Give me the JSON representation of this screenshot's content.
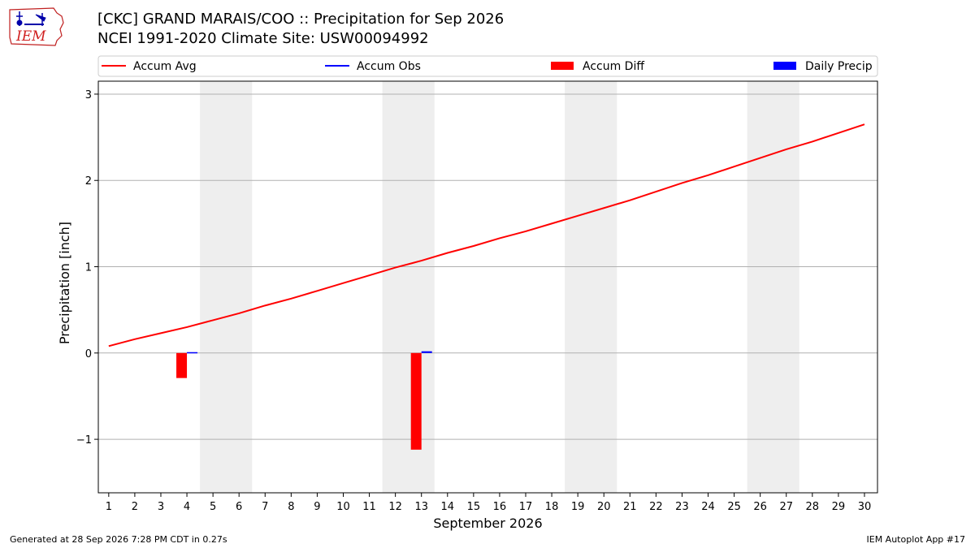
{
  "logo": {
    "text": "IEM",
    "icon": "iem-iowa-logo"
  },
  "header": {
    "title_line1": "[CKC] GRAND MARAIS/COO :: Precipitation for Sep 2026",
    "title_line2": "NCEI 1991-2020 Climate Site: USW00094992"
  },
  "footer": {
    "generated": "Generated at 28 Sep 2026 7:28 PM CDT in 0.27s",
    "app": "IEM Autoplot App #17"
  },
  "colors": {
    "accum_avg": "#ff0000",
    "accum_obs": "#0000ff",
    "accum_diff": "#ff0000",
    "daily_precip": "#0000ff",
    "weekend_shade": "#eeeeee",
    "grid": "#b0b0b0"
  },
  "chart_data": {
    "type": "line",
    "xlabel": "September 2026",
    "ylabel": "Precipitation [inch]",
    "xlim": [
      0.6,
      30.5
    ],
    "ylim": [
      -1.62,
      3.15
    ],
    "yticks": [
      -1,
      0,
      1,
      2,
      3
    ],
    "ytick_labels": [
      "−1",
      "0",
      "1",
      "2",
      "3"
    ],
    "x": [
      1,
      2,
      3,
      4,
      5,
      6,
      7,
      8,
      9,
      10,
      11,
      12,
      13,
      14,
      15,
      16,
      17,
      18,
      19,
      20,
      21,
      22,
      23,
      24,
      25,
      26,
      27,
      28,
      29,
      30
    ],
    "xtick_labels": [
      "1",
      "2",
      "3",
      "4",
      "5",
      "6",
      "7",
      "8",
      "9",
      "10",
      "11",
      "12",
      "13",
      "14",
      "15",
      "16",
      "17",
      "18",
      "19",
      "20",
      "21",
      "22",
      "23",
      "24",
      "25",
      "26",
      "27",
      "28",
      "29",
      "30"
    ],
    "grid": "horizontal",
    "legend": "top",
    "weekend_spans": [
      [
        5,
        6
      ],
      [
        12,
        13
      ],
      [
        19,
        20
      ],
      [
        26,
        27
      ]
    ],
    "legend_entries": [
      {
        "label": "Accum Avg",
        "kind": "line",
        "color": "#ff0000"
      },
      {
        "label": "Accum Obs",
        "kind": "line",
        "color": "#0000ff"
      },
      {
        "label": "Accum Diff",
        "kind": "bar",
        "color": "#ff0000"
      },
      {
        "label": "Daily Precip",
        "kind": "bar",
        "color": "#0000ff"
      }
    ],
    "series": [
      {
        "name": "Accum Avg",
        "type": "line",
        "values": [
          0.08,
          0.16,
          0.23,
          0.3,
          0.38,
          0.46,
          0.55,
          0.63,
          0.72,
          0.81,
          0.9,
          0.99,
          1.07,
          1.16,
          1.24,
          1.33,
          1.41,
          1.5,
          1.59,
          1.68,
          1.77,
          1.87,
          1.97,
          2.06,
          2.16,
          2.26,
          2.36,
          2.45,
          2.55,
          2.65
        ]
      },
      {
        "name": "Accum Diff",
        "type": "bar",
        "values": [
          null,
          null,
          null,
          -0.29,
          null,
          null,
          null,
          null,
          null,
          null,
          null,
          null,
          -1.12,
          null,
          null,
          null,
          null,
          null,
          null,
          null,
          null,
          null,
          null,
          null,
          null,
          null,
          null,
          null,
          null,
          null
        ]
      },
      {
        "name": "Daily Precip",
        "type": "bar",
        "values": [
          null,
          null,
          null,
          0.01,
          null,
          null,
          null,
          null,
          null,
          null,
          null,
          null,
          0.02,
          null,
          null,
          null,
          null,
          null,
          null,
          null,
          null,
          null,
          null,
          null,
          null,
          null,
          null,
          null,
          null,
          null
        ]
      }
    ]
  }
}
